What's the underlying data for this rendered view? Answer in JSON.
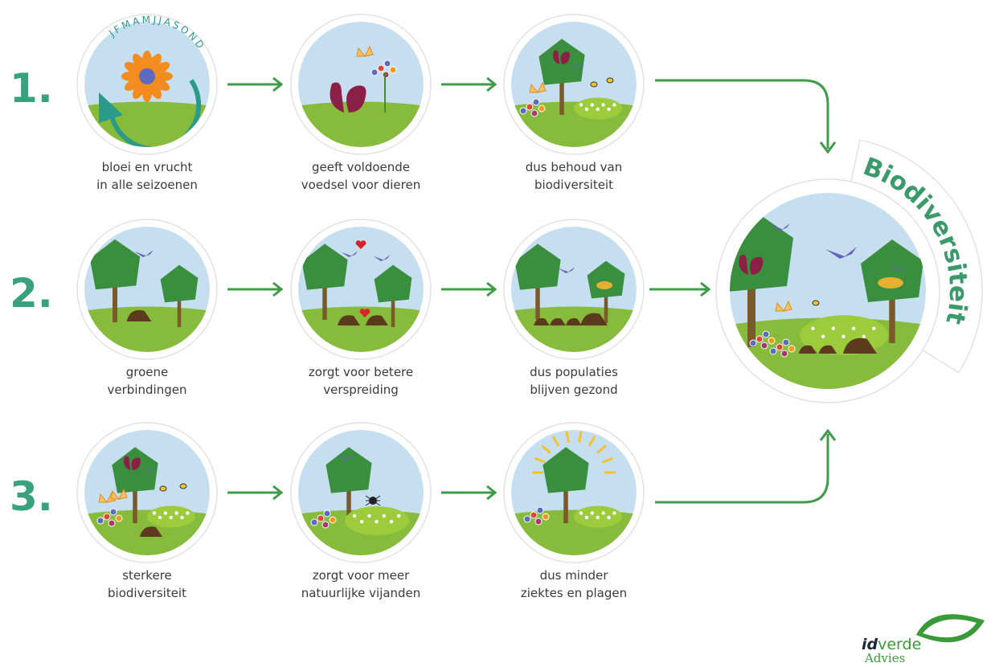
{
  "rows": [
    {
      "number": "1.",
      "steps": [
        {
          "caption": [
            "bloei en vrucht",
            "in alle seizoenen"
          ]
        },
        {
          "caption": [
            "geeft voldoende",
            "voedsel voor dieren"
          ]
        },
        {
          "caption": [
            "dus behoud van",
            "biodiversiteit"
          ]
        }
      ]
    },
    {
      "number": "2.",
      "steps": [
        {
          "caption": [
            "groene",
            "verbindingen"
          ]
        },
        {
          "caption": [
            "zorgt voor betere",
            "verspreiding"
          ]
        },
        {
          "caption": [
            "dus populaties",
            "blijven gezond"
          ]
        }
      ]
    },
    {
      "number": "3.",
      "steps": [
        {
          "caption": [
            "sterkere",
            "biodiversiteit"
          ]
        },
        {
          "caption": [
            "zorgt voor meer",
            "natuurlijke vijanden"
          ]
        },
        {
          "caption": [
            "dus minder",
            "ziektes en plagen"
          ]
        }
      ]
    }
  ],
  "months": "JFMAMJJASOND",
  "result": {
    "title": "Biodiversiteit"
  },
  "logo": {
    "brand_id": "id",
    "brand_verde": "verde",
    "subtitle": "Advies"
  }
}
